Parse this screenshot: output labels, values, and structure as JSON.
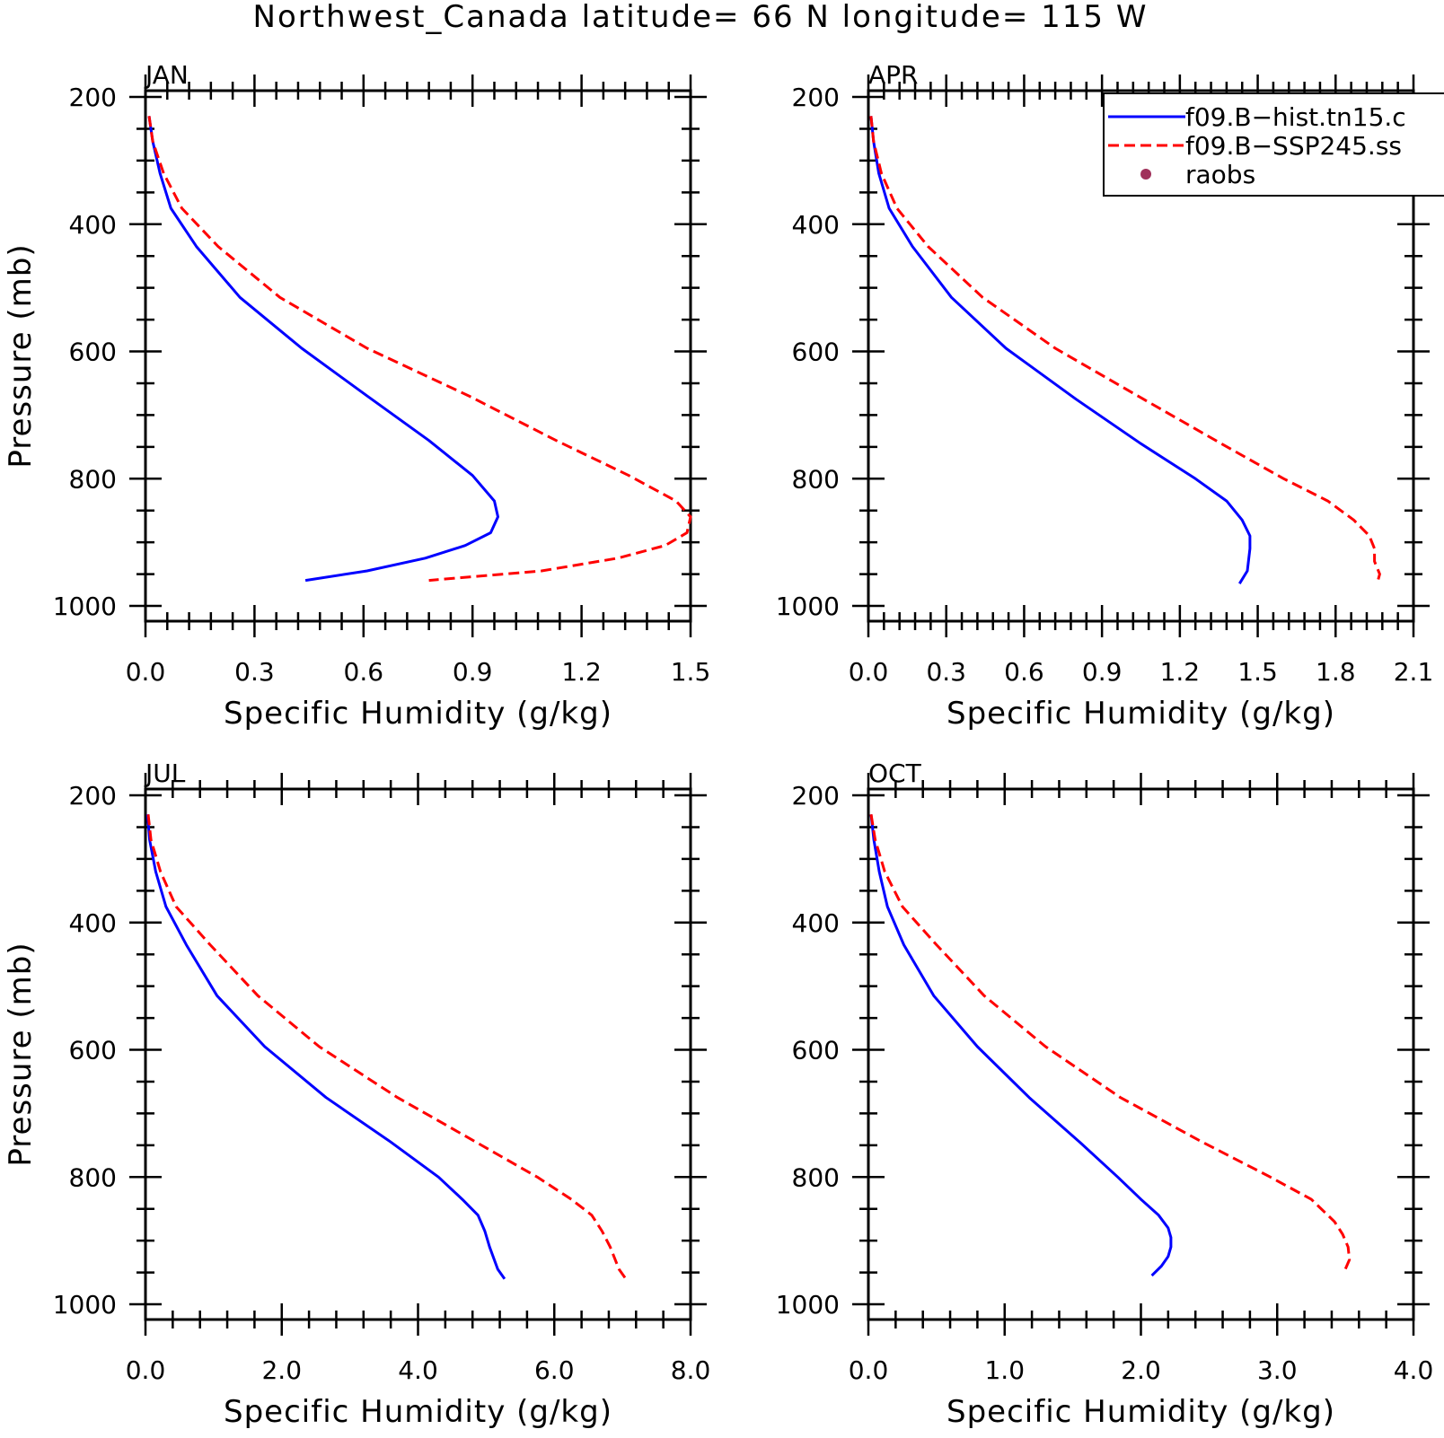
{
  "figure": {
    "title": "Northwest_Canada  latitude= 66 N longitude= 115 W"
  },
  "legend": {
    "entries": [
      {
        "label": "f09.B−hist.tn15.c",
        "color": "#0000ff",
        "style": "solid"
      },
      {
        "label": "f09.B−SSP245.ss",
        "color": "#ff0000",
        "style": "dashed"
      },
      {
        "label": "raobs",
        "color": "#a0305a",
        "style": "marker"
      }
    ]
  },
  "chart_data": [
    {
      "type": "line",
      "panel": "JAN",
      "xlabel": "Specific Humidity (g/kg)",
      "ylabel": "Pressure (mb)",
      "xlim": [
        0,
        1.5
      ],
      "ylim": [
        200,
        1000
      ],
      "y_inverted": true,
      "xticks": [
        "0.0",
        "0.3",
        "0.6",
        "0.9",
        "1.2",
        "1.5"
      ],
      "yticks": [
        "200",
        "400",
        "600",
        "800",
        "1000"
      ],
      "series": [
        {
          "name": "f09.B−hist.tn15.c",
          "color": "#0000ff",
          "dash": false,
          "x": [
            0.01,
            0.02,
            0.04,
            0.07,
            0.14,
            0.26,
            0.43,
            0.61,
            0.78,
            0.9,
            0.96,
            0.97,
            0.95,
            0.88,
            0.77,
            0.61,
            0.44
          ],
          "y": [
            230,
            270,
            320,
            375,
            435,
            515,
            595,
            670,
            740,
            795,
            835,
            860,
            885,
            905,
            925,
            945,
            960
          ]
        },
        {
          "name": "f09.B−SSP245.ss",
          "color": "#ff0000",
          "dash": true,
          "x": [
            0.01,
            0.02,
            0.05,
            0.1,
            0.2,
            0.37,
            0.61,
            0.89,
            1.13,
            1.33,
            1.46,
            1.5,
            1.49,
            1.43,
            1.3,
            1.09,
            0.78
          ],
          "y": [
            230,
            270,
            320,
            375,
            435,
            515,
            595,
            670,
            740,
            795,
            835,
            860,
            885,
            905,
            925,
            945,
            960
          ]
        }
      ]
    },
    {
      "type": "line",
      "panel": "APR",
      "xlabel": "Specific Humidity (g/kg)",
      "ylabel": "",
      "xlim": [
        0,
        2.1
      ],
      "ylim": [
        200,
        1000
      ],
      "y_inverted": true,
      "xticks": [
        "0.0",
        "0.3",
        "0.6",
        "0.9",
        "1.2",
        "1.5",
        "1.8",
        "2.1"
      ],
      "yticks": [
        "200",
        "400",
        "600",
        "800",
        "1000"
      ],
      "series": [
        {
          "name": "f09.B−hist.tn15.c",
          "color": "#0000ff",
          "dash": false,
          "x": [
            0.01,
            0.02,
            0.04,
            0.08,
            0.17,
            0.32,
            0.53,
            0.8,
            1.05,
            1.26,
            1.38,
            1.44,
            1.47,
            1.47,
            1.46,
            1.43
          ],
          "y": [
            230,
            270,
            320,
            375,
            435,
            515,
            595,
            675,
            745,
            800,
            835,
            865,
            890,
            910,
            945,
            965
          ]
        },
        {
          "name": "f09.B−SSP245.ss",
          "color": "#ff0000",
          "dash": true,
          "x": [
            0.01,
            0.02,
            0.05,
            0.11,
            0.23,
            0.44,
            0.72,
            1.06,
            1.36,
            1.6,
            1.77,
            1.87,
            1.93,
            1.95,
            1.95,
            1.97,
            1.96
          ],
          "y": [
            230,
            270,
            320,
            375,
            435,
            515,
            595,
            675,
            745,
            800,
            835,
            865,
            890,
            910,
            930,
            950,
            965
          ]
        }
      ]
    },
    {
      "type": "line",
      "panel": "JUL",
      "xlabel": "Specific Humidity (g/kg)",
      "ylabel": "Pressure (mb)",
      "xlim": [
        0,
        8.0
      ],
      "ylim": [
        200,
        1000
      ],
      "y_inverted": true,
      "xticks": [
        "0.0",
        "2.0",
        "4.0",
        "6.0",
        "8.0"
      ],
      "yticks": [
        "200",
        "400",
        "600",
        "800",
        "1000"
      ],
      "series": [
        {
          "name": "f09.B−hist.tn15.c",
          "color": "#0000ff",
          "dash": false,
          "x": [
            0.03,
            0.06,
            0.15,
            0.3,
            0.6,
            1.05,
            1.75,
            2.65,
            3.6,
            4.3,
            4.65,
            4.88,
            4.98,
            5.05,
            5.17,
            5.27
          ],
          "y": [
            230,
            270,
            320,
            375,
            435,
            515,
            595,
            675,
            745,
            800,
            835,
            860,
            885,
            910,
            945,
            960
          ]
        },
        {
          "name": "f09.B−SSP245.ss",
          "color": "#ff0000",
          "dash": true,
          "x": [
            0.04,
            0.08,
            0.22,
            0.45,
            0.95,
            1.65,
            2.55,
            3.7,
            4.85,
            5.75,
            6.25,
            6.55,
            6.7,
            6.82,
            6.95,
            7.05
          ],
          "y": [
            230,
            270,
            320,
            375,
            435,
            515,
            595,
            675,
            745,
            800,
            835,
            860,
            885,
            910,
            945,
            960
          ]
        }
      ]
    },
    {
      "type": "line",
      "panel": "OCT",
      "xlabel": "Specific Humidity (g/kg)",
      "ylabel": "",
      "xlim": [
        0,
        4.0
      ],
      "ylim": [
        200,
        1000
      ],
      "y_inverted": true,
      "xticks": [
        "0.0",
        "1.0",
        "2.0",
        "3.0",
        "4.0"
      ],
      "yticks": [
        "200",
        "400",
        "600",
        "800",
        "1000"
      ],
      "series": [
        {
          "name": "f09.B−hist.tn15.c",
          "color": "#0000ff",
          "dash": false,
          "x": [
            0.02,
            0.04,
            0.08,
            0.14,
            0.26,
            0.48,
            0.8,
            1.18,
            1.55,
            1.83,
            2.0,
            2.13,
            2.2,
            2.22,
            2.22,
            2.2,
            2.15,
            2.08
          ],
          "y": [
            230,
            270,
            320,
            375,
            435,
            515,
            595,
            675,
            745,
            800,
            835,
            860,
            880,
            895,
            910,
            925,
            940,
            955
          ]
        },
        {
          "name": "f09.B−SSP245.ss",
          "color": "#ff0000",
          "dash": true,
          "x": [
            0.02,
            0.05,
            0.12,
            0.25,
            0.5,
            0.85,
            1.3,
            1.85,
            2.45,
            2.95,
            3.25,
            3.42,
            3.48,
            3.52,
            3.53,
            3.5
          ],
          "y": [
            230,
            270,
            320,
            375,
            435,
            515,
            595,
            675,
            745,
            800,
            835,
            870,
            890,
            910,
            930,
            945
          ]
        }
      ]
    }
  ]
}
